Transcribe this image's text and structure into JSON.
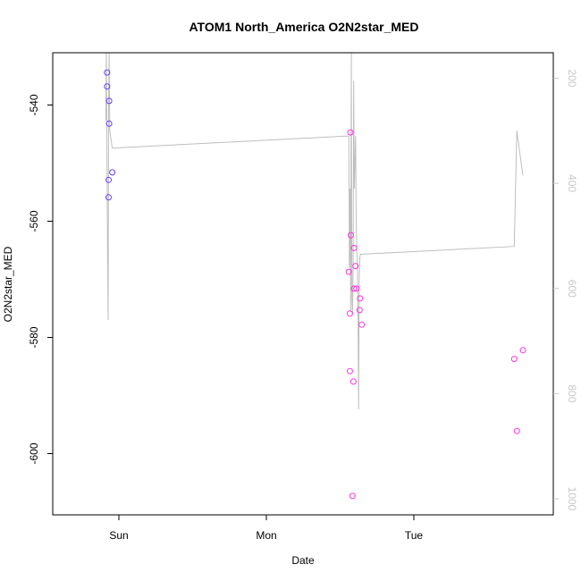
{
  "chart_data": {
    "type": "scatter",
    "title": "ATOM1 North_America O2N2star_MED",
    "xlabel": "Date",
    "ylabel": "O2N2star_MED",
    "x_ticks": [
      "Sun",
      "Mon",
      "Tue"
    ],
    "y_ticks": [
      -540,
      -560,
      -580,
      -600
    ],
    "y_right_ticks": [
      200,
      400,
      600,
      800,
      1000
    ],
    "colors": {
      "line": "#bebebe",
      "frame": "#000000",
      "right_axis": "#c8c8c8"
    },
    "points": [
      {
        "time": "Sat 22:05",
        "value": -534.4,
        "color": "#6a3cff"
      },
      {
        "time": "Sat 22:05",
        "value": -536.8,
        "color": "#6a3cff"
      },
      {
        "time": "Sat 22:20",
        "value": -555.9,
        "color": "#6a3cff"
      },
      {
        "time": "Sat 22:20",
        "value": -552.9,
        "color": "#6a3cff"
      },
      {
        "time": "Sat 22:25",
        "value": -539.3,
        "color": "#6a3cff"
      },
      {
        "time": "Sat 22:25",
        "value": -543.2,
        "color": "#6a3cff"
      },
      {
        "time": "Sat 22:55",
        "value": -551.6,
        "color": "#6a3cff"
      },
      {
        "time": "Mon 13:25",
        "value": -568.7,
        "color": "#ff33dd"
      },
      {
        "time": "Mon 13:35",
        "value": -575.9,
        "color": "#ff33dd"
      },
      {
        "time": "Mon 13:35",
        "value": -585.8,
        "color": "#ff33dd"
      },
      {
        "time": "Mon 13:40",
        "value": -544.7,
        "color": "#ff33dd"
      },
      {
        "time": "Mon 13:45",
        "value": -562.4,
        "color": "#ff33dd"
      },
      {
        "time": "Mon 14:00",
        "value": -607.3,
        "color": "#ff33dd"
      },
      {
        "time": "Mon 14:10",
        "value": -587.6,
        "color": "#ff33dd"
      },
      {
        "time": "Mon 14:15",
        "value": -564.6,
        "color": "#ff33dd"
      },
      {
        "time": "Mon 14:15",
        "value": -571.6,
        "color": "#ff33dd"
      },
      {
        "time": "Mon 14:30",
        "value": -567.7,
        "color": "#ff33dd"
      },
      {
        "time": "Mon 14:40",
        "value": -571.6,
        "color": "#ff33dd"
      },
      {
        "time": "Mon 15:10",
        "value": -575.3,
        "color": "#ff33dd"
      },
      {
        "time": "Mon 15:15",
        "value": -573.3,
        "color": "#ff33dd"
      },
      {
        "time": "Mon 15:30",
        "value": -577.8,
        "color": "#ff33dd"
      },
      {
        "time": "Tue 16:20",
        "value": -583.7,
        "color": "#ff33dd"
      },
      {
        "time": "Tue 16:45",
        "value": -596.1,
        "color": "#ff33dd"
      },
      {
        "time": "Tue 17:45",
        "value": -582.2,
        "color": "#ff33dd"
      }
    ],
    "line": [
      {
        "time": "Sat 21:52",
        "value": 280
      },
      {
        "time": "Sat 21:58",
        "value": 105
      },
      {
        "time": "Sat 22:04",
        "value": 355
      },
      {
        "time": "Sat 22:10",
        "value": 545
      },
      {
        "time": "Sat 22:15",
        "value": 660
      },
      {
        "time": "Sat 22:20",
        "value": 250
      },
      {
        "time": "Sat 22:25",
        "value": 105
      },
      {
        "time": "Sat 22:31",
        "value": 300
      },
      {
        "time": "Sat 22:55",
        "value": 333
      },
      {
        "time": "Mon 13:05",
        "value": 310
      },
      {
        "time": "Mon 13:25",
        "value": 310
      },
      {
        "time": "Mon 13:31",
        "value": 560
      },
      {
        "time": "Mon 13:37",
        "value": 410
      },
      {
        "time": "Mon 13:43",
        "value": 645
      },
      {
        "time": "Mon 13:49",
        "value": 105
      },
      {
        "time": "Mon 13:55",
        "value": 620
      },
      {
        "time": "Mon 14:01",
        "value": 650
      },
      {
        "time": "Mon 14:07",
        "value": 550
      },
      {
        "time": "Mon 14:13",
        "value": 205
      },
      {
        "time": "Mon 14:19",
        "value": 410
      },
      {
        "time": "Mon 14:25",
        "value": 360
      },
      {
        "time": "Mon 14:31",
        "value": 310
      },
      {
        "time": "Mon 14:37",
        "value": 470
      },
      {
        "time": "Mon 14:43",
        "value": 530
      },
      {
        "time": "Mon 14:49",
        "value": 560
      },
      {
        "time": "Mon 14:55",
        "value": 660
      },
      {
        "time": "Mon 15:01",
        "value": 830
      },
      {
        "time": "Mon 15:07",
        "value": 580
      },
      {
        "time": "Mon 15:13",
        "value": 540
      },
      {
        "time": "Mon 15:19",
        "value": 535
      },
      {
        "time": "Tue 16:20",
        "value": 520
      },
      {
        "time": "Tue 16:45",
        "value": 300
      },
      {
        "time": "Tue 17:45",
        "value": 385
      }
    ]
  }
}
